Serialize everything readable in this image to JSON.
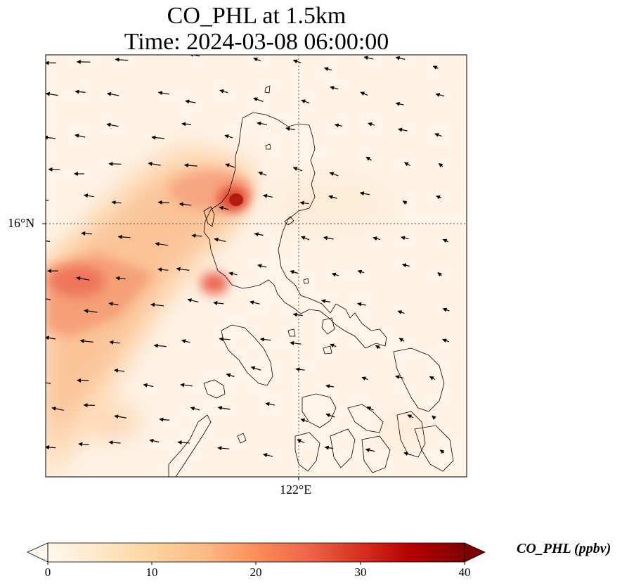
{
  "title": {
    "line1": "CO_PHL at 1.5km",
    "line2": "Time: 2024-03-08 06:00:00"
  },
  "axes": {
    "lat_tick": "16°N",
    "lon_tick": "122°E"
  },
  "colorbar": {
    "label": "CO_PHL (ppbv)",
    "ticks": [
      "0",
      "10",
      "20",
      "30",
      "40"
    ],
    "min": 0,
    "max": 40,
    "extend": "both",
    "colormap": "OrRd",
    "colors": [
      "#fff7ec",
      "#fee8c8",
      "#fdd49e",
      "#fdbb84",
      "#fc8d59",
      "#ef6548",
      "#d7301f",
      "#b30000",
      "#7f0000"
    ]
  },
  "map": {
    "gridlines": "dotted",
    "coastline_color": "#000000",
    "wind_vectors": "northeasterly",
    "plumes": [
      {
        "name": "luzon-northwest-hotspot",
        "peak_ppbv": 34
      },
      {
        "name": "manila-area",
        "peak_ppbv": 24
      },
      {
        "name": "western-sea-plume",
        "peak_ppbv": 23
      }
    ]
  }
}
